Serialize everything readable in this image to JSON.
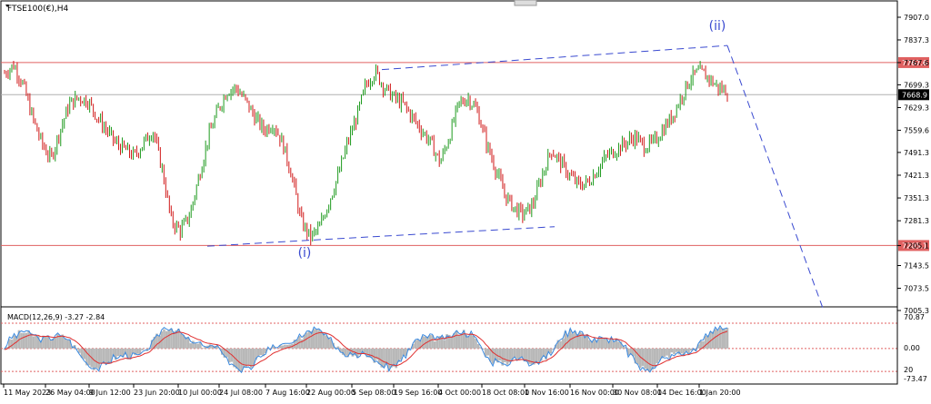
{
  "chart_data": {
    "type": "candlestick",
    "symbol_label": "FTSE100(€),H4",
    "price_axis": {
      "ylim": [
        7005.3,
        7907.0
      ],
      "ticks": [
        "7907.0",
        "7837.3",
        "7767.6",
        "7699.3",
        "7629.3",
        "7559.6",
        "7491.3",
        "7421.3",
        "7351.3",
        "7281.3",
        "7205.1",
        "7143.5",
        "7073.5",
        "7005.3"
      ]
    },
    "time_axis": {
      "labels": [
        "11 May 2023",
        "26 May 04:00",
        "9 Jun 12:00",
        "23 Jun 20:00",
        "10 Jul 00:00",
        "24 Jul 08:00",
        "7 Aug 16:00",
        "22 Aug 00:00",
        "5 Sep 08:00",
        "19 Sep 16:00",
        "4 Oct 00:00",
        "18 Oct 08:00",
        "1 Nov 16:00",
        "16 Nov 00:00",
        "30 Nov 08:00",
        "14 Dec 16:00",
        "1 Jan 20:00"
      ]
    },
    "horizontal_levels": [
      {
        "value": 7767.6,
        "label": "7767.6",
        "color": "#e06060"
      },
      {
        "value": 7205.1,
        "label": "7205.1",
        "color": "#e06060"
      }
    ],
    "current_price": {
      "value": 7668.9,
      "label": "7668.9"
    },
    "wave_labels": [
      {
        "text": "(i)",
        "value": 7170
      },
      {
        "text": "(ii)",
        "value": 7868
      }
    ],
    "colors": {
      "bull": "#1e9a1e",
      "bear": "#d01818",
      "projection": "#3a4ad0",
      "level": "#e06060"
    },
    "candles_approx_close_path": [
      7735,
      7760,
      7700,
      7600,
      7520,
      7470,
      7560,
      7640,
      7660,
      7650,
      7600,
      7560,
      7520,
      7500,
      7480,
      7520,
      7560,
      7440,
      7280,
      7250,
      7300,
      7420,
      7540,
      7620,
      7680,
      7690,
      7650,
      7600,
      7560,
      7580,
      7520,
      7420,
      7280,
      7230,
      7260,
      7340,
      7420,
      7520,
      7600,
      7700,
      7740,
      7690,
      7660,
      7640,
      7600,
      7560,
      7520,
      7460,
      7540,
      7640,
      7660,
      7620,
      7520,
      7440,
      7360,
      7320,
      7300,
      7330,
      7420,
      7500,
      7460,
      7420,
      7390,
      7400,
      7440,
      7480,
      7500,
      7520,
      7540,
      7510,
      7520,
      7560,
      7600,
      7660,
      7720,
      7740,
      7720,
      7690,
      7680
    ]
  },
  "macd": {
    "label": "MACD(12,26,9) -3.27 -2.84",
    "ticks": [
      "70.87",
      "0.00",
      "20",
      "-73.47"
    ]
  }
}
